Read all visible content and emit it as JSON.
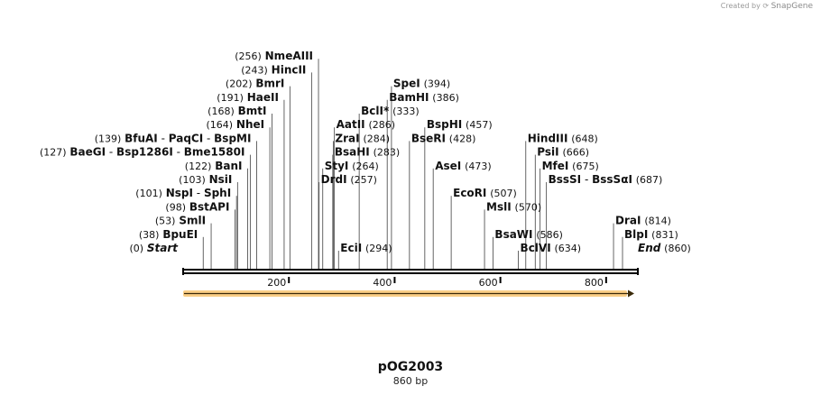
{
  "credit": {
    "prefix": "Created by",
    "brand": "SnapGene"
  },
  "plasmid": {
    "name": "pOG2003",
    "length_label": "860 bp",
    "length": 860
  },
  "backbone_color": "#000000",
  "feature_color": "#f5a623",
  "axis_ticks": [
    {
      "value": 200,
      "label": "200"
    },
    {
      "value": 400,
      "label": "400"
    },
    {
      "value": 600,
      "label": "600"
    },
    {
      "value": 800,
      "label": "800"
    }
  ],
  "sites": [
    {
      "pos": 0,
      "pos_label": "(0)",
      "names": [
        "Start"
      ],
      "italic": true,
      "label_side": "left"
    },
    {
      "pos": 38,
      "pos_label": "(38)",
      "names": [
        "BpuEI"
      ],
      "label_side": "left"
    },
    {
      "pos": 53,
      "pos_label": "(53)",
      "names": [
        "SmlI"
      ],
      "label_side": "left"
    },
    {
      "pos": 98,
      "pos_label": "(98)",
      "names": [
        "BstAPI"
      ],
      "label_side": "left"
    },
    {
      "pos": 101,
      "pos_label": "(101)",
      "names": [
        "NspI",
        "SphI"
      ],
      "label_side": "left"
    },
    {
      "pos": 103,
      "pos_label": "(103)",
      "names": [
        "NsiI"
      ],
      "label_side": "left"
    },
    {
      "pos": 122,
      "pos_label": "(122)",
      "names": [
        "BanI"
      ],
      "label_side": "left"
    },
    {
      "pos": 127,
      "pos_label": "(127)",
      "names": [
        "BaeGI",
        "Bsp1286I",
        "Bme1580I"
      ],
      "label_side": "left"
    },
    {
      "pos": 139,
      "pos_label": "(139)",
      "names": [
        "BfuAI",
        "PaqCI",
        "BspMI"
      ],
      "label_side": "left"
    },
    {
      "pos": 164,
      "pos_label": "(164)",
      "names": [
        "NheI"
      ],
      "label_side": "left"
    },
    {
      "pos": 168,
      "pos_label": "(168)",
      "names": [
        "BmtI"
      ],
      "label_side": "left"
    },
    {
      "pos": 191,
      "pos_label": "(191)",
      "names": [
        "HaeII"
      ],
      "label_side": "left"
    },
    {
      "pos": 202,
      "pos_label": "(202)",
      "names": [
        "BmrI"
      ],
      "label_side": "left"
    },
    {
      "pos": 243,
      "pos_label": "(243)",
      "names": [
        "HincII"
      ],
      "label_side": "left"
    },
    {
      "pos": 256,
      "pos_label": "(256)",
      "names": [
        "NmeAIII"
      ],
      "label_side": "left"
    },
    {
      "pos": 257,
      "pos_label": "(257)",
      "names": [
        "DrdI"
      ],
      "label_side": "right"
    },
    {
      "pos": 264,
      "pos_label": "(264)",
      "names": [
        "StyI"
      ],
      "label_side": "right"
    },
    {
      "pos": 283,
      "pos_label": "(283)",
      "names": [
        "BsaHI"
      ],
      "label_side": "right"
    },
    {
      "pos": 284,
      "pos_label": "(284)",
      "names": [
        "ZraI"
      ],
      "label_side": "right"
    },
    {
      "pos": 286,
      "pos_label": "(286)",
      "names": [
        "AatII"
      ],
      "label_side": "right"
    },
    {
      "pos": 294,
      "pos_label": "(294)",
      "names": [
        "EciI"
      ],
      "label_side": "right"
    },
    {
      "pos": 333,
      "pos_label": "(333)",
      "names": [
        "BclI"
      ],
      "star": "*",
      "label_side": "right"
    },
    {
      "pos": 386,
      "pos_label": "(386)",
      "names": [
        "BamHI"
      ],
      "label_side": "right"
    },
    {
      "pos": 394,
      "pos_label": "(394)",
      "names": [
        "SpeI"
      ],
      "label_side": "right"
    },
    {
      "pos": 428,
      "pos_label": "(428)",
      "names": [
        "BseRI"
      ],
      "label_side": "right"
    },
    {
      "pos": 457,
      "pos_label": "(457)",
      "names": [
        "BspHI"
      ],
      "label_side": "right"
    },
    {
      "pos": 473,
      "pos_label": "(473)",
      "names": [
        "AseI"
      ],
      "label_side": "right"
    },
    {
      "pos": 507,
      "pos_label": "(507)",
      "names": [
        "EcoRI"
      ],
      "label_side": "right"
    },
    {
      "pos": 570,
      "pos_label": "(570)",
      "names": [
        "MslI"
      ],
      "label_side": "right"
    },
    {
      "pos": 586,
      "pos_label": "(586)",
      "names": [
        "BsaWI"
      ],
      "label_side": "right"
    },
    {
      "pos": 634,
      "pos_label": "(634)",
      "names": [
        "BclVI"
      ],
      "label_side": "right"
    },
    {
      "pos": 648,
      "pos_label": "(648)",
      "names": [
        "HindIII"
      ],
      "label_side": "right"
    },
    {
      "pos": 666,
      "pos_label": "(666)",
      "names": [
        "PsiI"
      ],
      "label_side": "right"
    },
    {
      "pos": 675,
      "pos_label": "(675)",
      "names": [
        "MfeI"
      ],
      "label_side": "right"
    },
    {
      "pos": 687,
      "pos_label": "(687)",
      "names": [
        "BssSI",
        "BssSαI"
      ],
      "label_side": "right"
    },
    {
      "pos": 814,
      "pos_label": "(814)",
      "names": [
        "DraI"
      ],
      "label_side": "right"
    },
    {
      "pos": 831,
      "pos_label": "(831)",
      "names": [
        "BlpI"
      ],
      "label_side": "right"
    },
    {
      "pos": 860,
      "pos_label": "(860)",
      "names": [
        "End"
      ],
      "italic": true,
      "label_side": "right"
    }
  ]
}
